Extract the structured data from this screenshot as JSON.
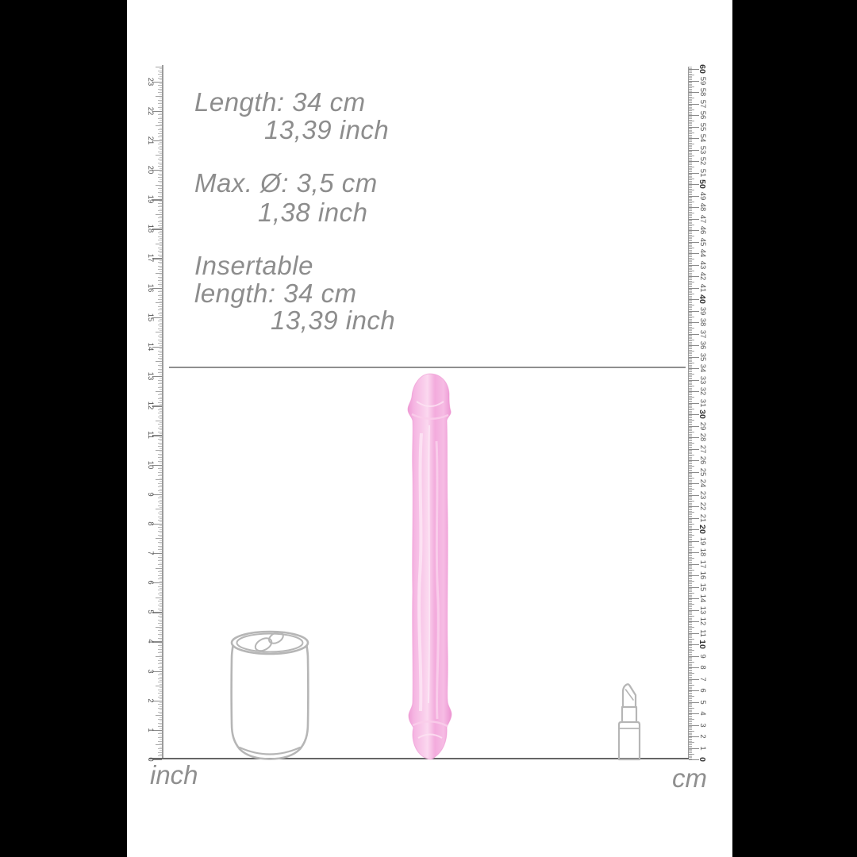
{
  "specs": {
    "length_cm": "Length: 34 cm",
    "length_inch": "13,39 inch",
    "diameter_cm": "Max. Ø: 3,5 cm",
    "diameter_inch": "1,38 inch",
    "insertable_line1": "Insertable",
    "insertable_line2": "length: 34 cm",
    "insertable_line3": "13,39 inch"
  },
  "rulers": {
    "inch": {
      "label": "inch",
      "min": 0,
      "max": 23,
      "subdivisions_per_unit": 16,
      "numbered_every": 1
    },
    "cm": {
      "label": "cm",
      "min": 0,
      "max": 60,
      "subdivisions_per_unit": 10,
      "numbered_every": 1,
      "bold_every": 10
    }
  },
  "measurement_line": {
    "value_cm": 34,
    "value_inch": "13,39"
  },
  "graphics": {
    "product": "double-ended-dildo-graphic",
    "left_scale_object": "soda-can-icon",
    "right_scale_object": "lipstick-icon"
  },
  "colors": {
    "product_pink_edge": "#ee9bd5",
    "product_pink_center": "#fbd8ef",
    "spec_text": "#8d8d8d",
    "outline_gray": "#b6b6b6",
    "ruler_line": "#9a9a9a",
    "baseline": "#666666",
    "marker_line": "#8f8f8f",
    "background": "#ffffff",
    "side_bars": "#000000"
  }
}
